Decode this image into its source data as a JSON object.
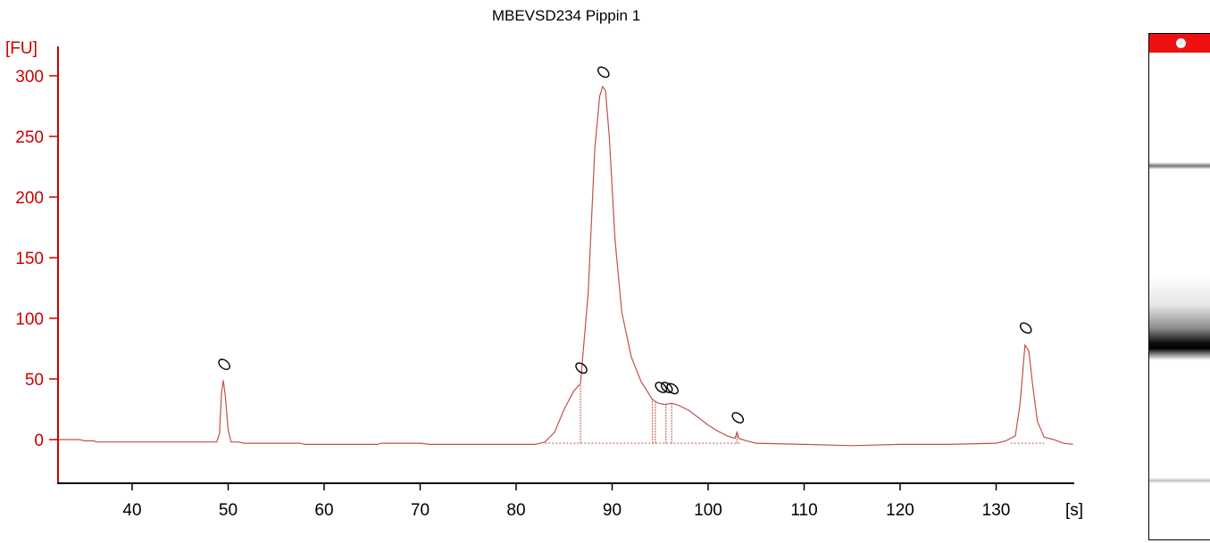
{
  "chart_data": {
    "type": "line",
    "title": "MBEVSD234 Pippin 1",
    "xlabel": "[s]",
    "ylabel": "[FU]",
    "xlim": [
      32,
      138
    ],
    "ylim": [
      -35,
      322
    ],
    "x_ticks": [
      40,
      50,
      60,
      70,
      80,
      90,
      100,
      110,
      120,
      130
    ],
    "y_ticks": [
      0,
      50,
      100,
      150,
      200,
      250,
      300
    ],
    "grid": false,
    "legend": "none",
    "colors": {
      "axis": "#cc0000",
      "trace": "#c0504d",
      "marker": "#000000"
    },
    "series": [
      {
        "x": [
          32,
          34.5,
          35,
          36,
          36.3,
          36.6,
          40,
          45,
          48.8,
          49.1,
          49.3,
          49.5,
          49.7,
          50.0,
          50.3,
          51.0,
          51.7,
          52.0,
          55,
          57.5,
          58,
          60,
          63,
          65.5,
          66,
          70,
          71,
          72,
          73.8,
          74,
          78,
          82,
          83,
          84,
          85,
          86,
          86.7,
          87.5,
          88.2,
          88.7,
          89.0,
          89.3,
          89.7,
          90.3,
          91,
          92,
          93,
          94.2,
          94.8,
          95.5,
          96.2,
          97,
          98,
          99,
          100,
          101,
          102,
          102.8,
          103.0,
          103.2,
          104,
          105,
          110,
          115,
          120,
          125,
          130,
          131,
          132,
          132.5,
          133.0,
          133.4,
          133.8,
          134.3,
          135,
          136,
          137,
          138
        ],
        "y": [
          0,
          0,
          -1,
          -1,
          -2,
          -2,
          -2,
          -2,
          -2,
          5,
          38,
          49,
          36,
          8,
          -2,
          -2,
          -3,
          -3,
          -3,
          -3,
          -4,
          -4,
          -4,
          -4,
          -3,
          -3,
          -4,
          -4,
          -4,
          -4,
          -4,
          -4,
          -2,
          6,
          25,
          40,
          46,
          120,
          240,
          283,
          291,
          288,
          250,
          165,
          105,
          68,
          48,
          33,
          30,
          29,
          30,
          28,
          24,
          18,
          12,
          7,
          3,
          1,
          6,
          1,
          -1,
          -3,
          -4,
          -5,
          -4,
          -4,
          -3,
          -1,
          3,
          30,
          78,
          73,
          45,
          15,
          2,
          0,
          -3,
          -4
        ]
      }
    ],
    "peaks": [
      {
        "x": 49.5,
        "y": 49,
        "mark_y": 62
      },
      {
        "x": 89.0,
        "y": 291,
        "mark_y": 303
      },
      {
        "x": 86.7,
        "y": 46,
        "mark_y": 59
      },
      {
        "x": 95.0,
        "y": 30,
        "mark_y": 43
      },
      {
        "x": 95.6,
        "y": 30,
        "mark_y": 43
      },
      {
        "x": 96.2,
        "y": 30,
        "mark_y": 42
      },
      {
        "x": 103.0,
        "y": 6,
        "mark_y": 18
      },
      {
        "x": 133.0,
        "y": 78,
        "mark_y": 92
      }
    ],
    "peak_bounds": [
      86.7,
      94.2,
      94.5,
      95.6,
      96.2,
      103.0
    ]
  }
}
